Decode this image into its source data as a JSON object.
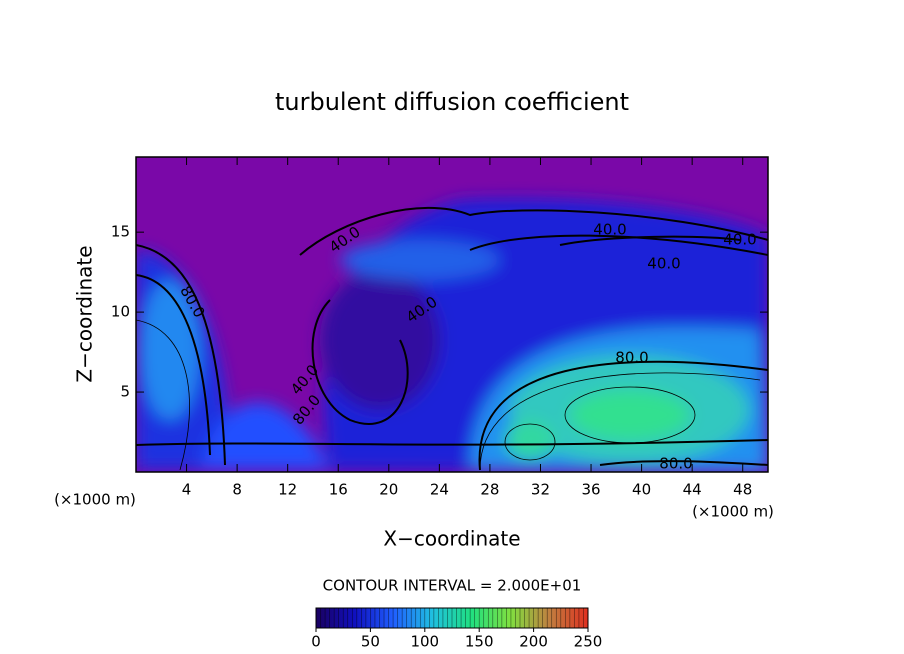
{
  "chart_data": {
    "type": "contour",
    "title": "turbulent diffusion coefficient",
    "x_label": "X−coordinate",
    "y_label": "Z−coordinate",
    "x_unit": "(×1000 m)",
    "xlim": [
      0,
      50
    ],
    "xticks": [
      4,
      8,
      12,
      16,
      20,
      24,
      28,
      32,
      36,
      40,
      44,
      48
    ],
    "ylim": [
      0,
      19.7
    ],
    "yticks": [
      5,
      10,
      15
    ],
    "contour_interval": "CONTOUR INTERVAL = 2.000E+01",
    "contour_labels": [
      "40.0",
      "40.0",
      "40.0",
      "40.0",
      "40.0",
      "80.0",
      "80.0",
      "80.0",
      "40.0",
      "80.0"
    ],
    "colorbar_lim": [
      0,
      250
    ],
    "colorbar_ticks": [
      0,
      50,
      100,
      150,
      200,
      250
    ],
    "colorbar_colors": [
      "#1a0060",
      "#1010c0",
      "#2060ff",
      "#20c0e0",
      "#20e080",
      "#80e040",
      "#c08040",
      "#e03020"
    ]
  }
}
